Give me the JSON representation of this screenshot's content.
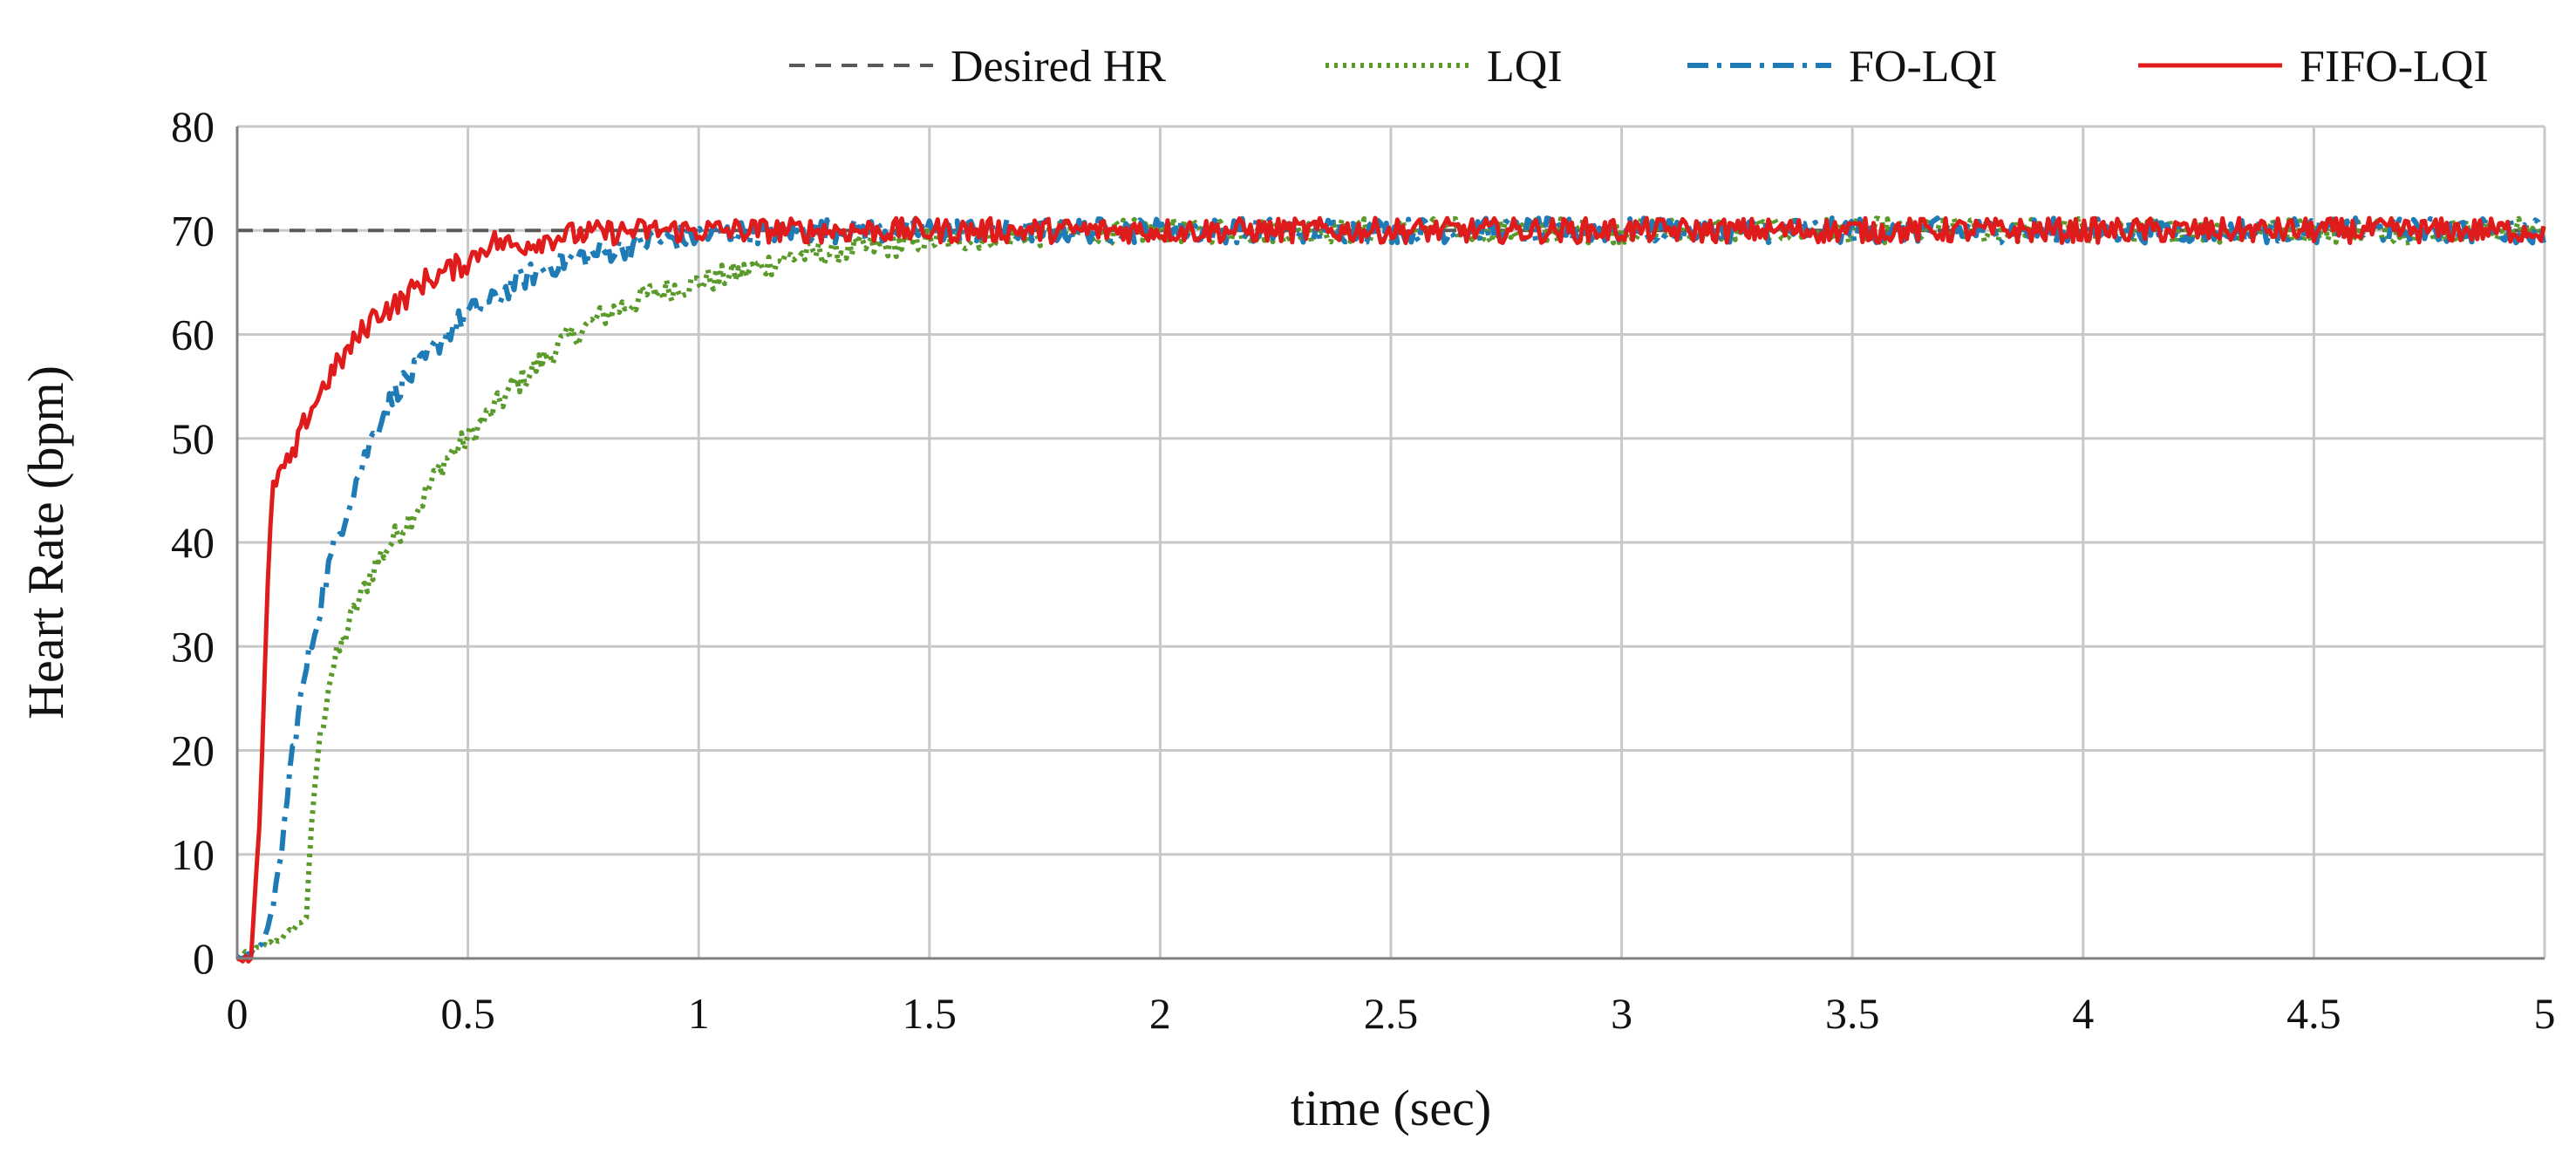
{
  "chart_data": {
    "type": "line",
    "xlabel": "time (sec)",
    "ylabel": "Heart Rate (bpm)",
    "xlim": [
      0,
      5
    ],
    "ylim": [
      0,
      80
    ],
    "x_ticks": [
      "0",
      "0.5",
      "1",
      "1.5",
      "2",
      "2.5",
      "3",
      "3.5",
      "4",
      "4.5",
      "5"
    ],
    "y_ticks": [
      "0",
      "10",
      "20",
      "30",
      "40",
      "50",
      "60",
      "70",
      "80"
    ],
    "grid": true,
    "legend_position": "top",
    "series": [
      {
        "name": "Desired HR",
        "color": "#595959",
        "dash": "dashed",
        "x": [
          0,
          5
        ],
        "y": [
          70,
          70
        ]
      },
      {
        "name": "LQI",
        "color": "#5a9a2a",
        "dash": "dotted",
        "x": [
          0,
          0.05,
          0.1,
          0.15,
          0.17,
          0.2,
          0.25,
          0.3,
          0.35,
          0.4,
          0.45,
          0.5,
          0.6,
          0.7,
          0.8,
          0.9,
          1.0,
          1.1,
          1.2,
          1.3,
          1.4,
          1.5,
          1.6,
          1.7,
          1.8,
          1.9,
          2.0,
          2.5,
          3.0,
          3.5,
          4.0,
          4.5,
          5.0
        ],
        "y": [
          0,
          1,
          2,
          4,
          18,
          27,
          33,
          38,
          41,
          44,
          48,
          50,
          55,
          59,
          62,
          64,
          65,
          66,
          67.5,
          68,
          68.5,
          69,
          69.3,
          69.6,
          69.7,
          69.8,
          70,
          70,
          70,
          70,
          70,
          70,
          70
        ]
      },
      {
        "name": "FO-LQI",
        "color": "#1f7bb5",
        "dash": "dashdot",
        "x": [
          0,
          0.05,
          0.08,
          0.1,
          0.12,
          0.15,
          0.2,
          0.25,
          0.3,
          0.35,
          0.4,
          0.45,
          0.5,
          0.55,
          0.6,
          0.7,
          0.8,
          0.9,
          1.0,
          1.1,
          1.2,
          1.3,
          1.5,
          2.0,
          2.5,
          3.0,
          3.5,
          4.0,
          4.5,
          5.0
        ],
        "y": [
          0,
          1,
          5,
          12,
          20,
          28,
          38,
          45,
          51,
          55,
          57,
          60,
          62,
          63,
          65,
          67,
          68,
          69,
          69.5,
          69.8,
          70,
          70,
          70,
          70,
          70,
          70,
          70,
          70,
          70,
          70
        ]
      },
      {
        "name": "FIFO-LQI",
        "color": "#e01b1b",
        "dash": "solid",
        "x": [
          0,
          0.03,
          0.05,
          0.07,
          0.08,
          0.1,
          0.12,
          0.15,
          0.2,
          0.25,
          0.3,
          0.35,
          0.4,
          0.45,
          0.5,
          0.55,
          0.6,
          0.65,
          0.7,
          0.8,
          0.9,
          1.0,
          1.5,
          2.0,
          2.5,
          3.0,
          3.5,
          4.0,
          4.5,
          5.0
        ],
        "y": [
          0,
          0,
          15,
          40,
          46,
          47,
          48,
          52,
          56,
          59,
          62,
          63,
          65,
          66,
          67,
          69,
          68.5,
          69,
          69.5,
          69.8,
          70,
          70,
          70,
          70,
          70,
          70,
          70,
          70,
          70,
          70
        ]
      }
    ]
  }
}
